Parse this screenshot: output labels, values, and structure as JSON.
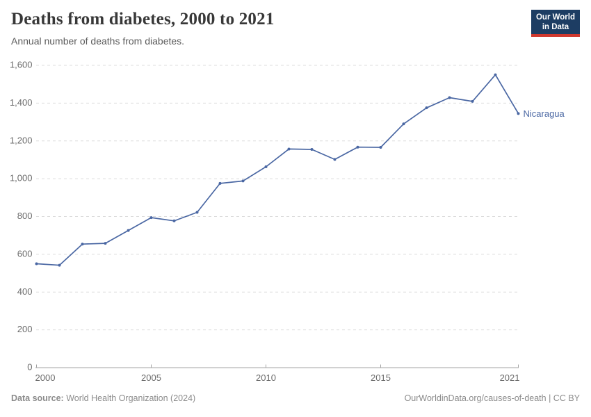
{
  "header": {
    "title": "Deaths from diabetes, 2000 to 2021",
    "subtitle": "Annual number of deaths from diabetes.",
    "logo": {
      "line1": "Our World",
      "line2": "in Data",
      "bg_color": "#1d3d63",
      "bar_color": "#d0382e"
    }
  },
  "chart_data": {
    "type": "line",
    "title": "Deaths from diabetes, 2000 to 2021",
    "x": [
      2000,
      2001,
      2002,
      2003,
      2004,
      2005,
      2006,
      2007,
      2008,
      2009,
      2010,
      2011,
      2012,
      2013,
      2014,
      2015,
      2016,
      2017,
      2018,
      2019,
      2020,
      2021
    ],
    "series": [
      {
        "name": "Nicaragua",
        "color": "#4a67a3",
        "values": [
          550,
          542,
          654,
          658,
          726,
          794,
          777,
          822,
          975,
          988,
          1063,
          1157,
          1155,
          1102,
          1167,
          1166,
          1290,
          1375,
          1429,
          1409,
          1550,
          1345
        ]
      }
    ],
    "xlabel": "",
    "ylabel": "",
    "ylim": [
      0,
      1600
    ],
    "ytick_interval": 200,
    "xticks": [
      2000,
      2005,
      2010,
      2015,
      2021
    ],
    "grid": "horizontal-dashed",
    "gridline_color": "#dcdcdc",
    "axis_color": "#a3a3a3",
    "tick_label_color": "#6b6b6b",
    "legend_position": "end-of-line-label"
  },
  "footer": {
    "datasource_label": "Data source:",
    "datasource": "World Health Organization (2024)",
    "link": "OurWorldinData.org/causes-of-death | CC BY"
  }
}
